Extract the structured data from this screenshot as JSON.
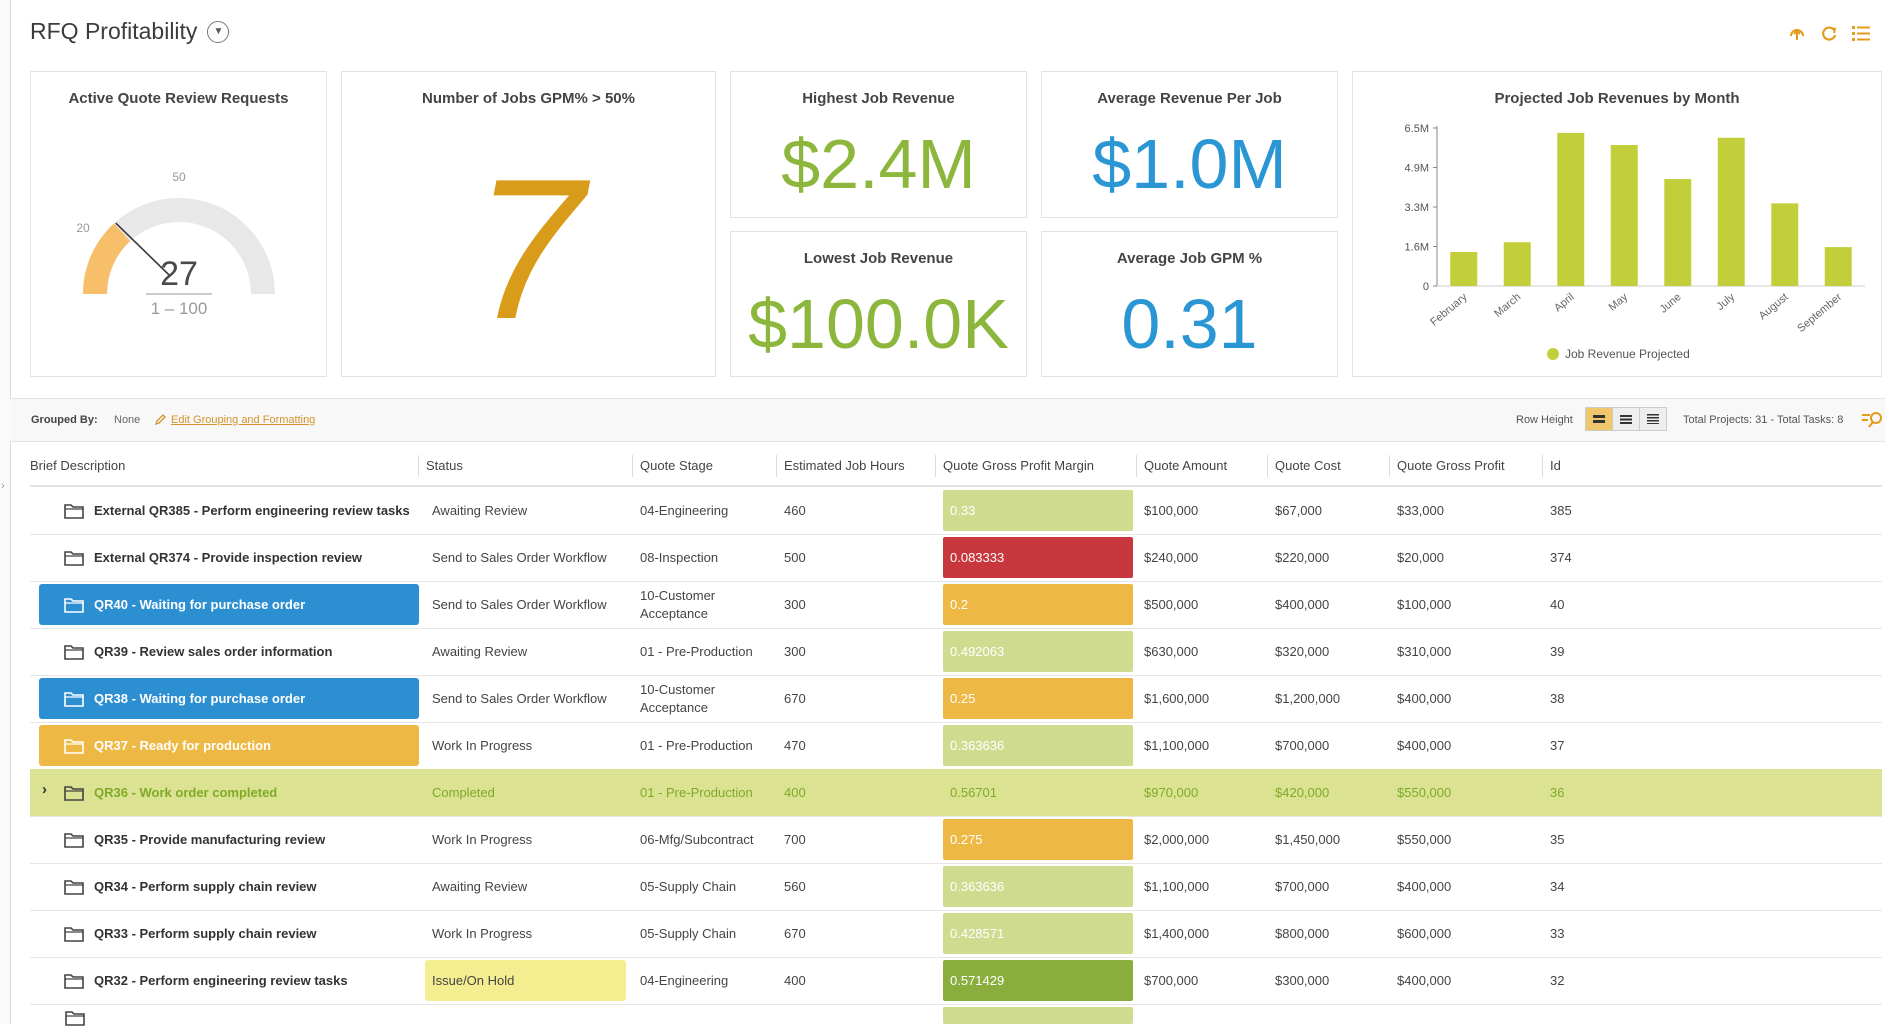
{
  "page": {
    "title": "RFQ Profitability"
  },
  "kpis": {
    "active_quotes": {
      "title": "Active Quote Review Requests",
      "value": "27",
      "range": "1 – 100",
      "tick_low": "20",
      "tick_mid": "50",
      "gauge": {
        "min": 1,
        "max": 100,
        "value": 27
      }
    },
    "jobs_gpm": {
      "title": "Number of Jobs GPM% > 50%",
      "value": "7"
    },
    "highest_revenue": {
      "title": "Highest Job Revenue",
      "value": "$2.4M"
    },
    "average_revenue": {
      "title": "Average Revenue Per Job",
      "value": "$1.0M"
    },
    "lowest_revenue": {
      "title": "Lowest Job Revenue",
      "value": "$100.0K"
    },
    "average_gpm": {
      "title": "Average Job GPM %",
      "value": "0.31"
    }
  },
  "colors": {
    "green": "#8db63c",
    "blue": "#2a97d4",
    "gold": "#d89c1a",
    "lime": "#c3cf3a",
    "orange_gauge": "#f7bf6a",
    "row_blue": "#2c8fd2",
    "row_amber": "#eeb845",
    "row_lime": "#dbe291",
    "margin_light": "#cfdb8f",
    "margin_red": "#c8373d",
    "margin_amber": "#eeb845",
    "margin_green": "#8aae3d",
    "status_yellow": "#f5ee91"
  },
  "chart_data": {
    "type": "bar",
    "title": "Projected Job Revenues by Month",
    "categories": [
      "February",
      "March",
      "April",
      "May",
      "June",
      "July",
      "August",
      "September"
    ],
    "series": [
      {
        "name": "Job Revenue Projected",
        "values": [
          1.4,
          1.8,
          6.3,
          5.8,
          4.4,
          6.1,
          3.4,
          1.6
        ]
      }
    ],
    "y_ticks": [
      "0",
      "1.6M",
      "3.3M",
      "4.9M",
      "6.5M"
    ],
    "ylim": [
      0,
      6.5
    ],
    "legend_position": "bottom"
  },
  "toolbar": {
    "grouped_by_label": "Grouped By:",
    "grouped_by_value": "None",
    "edit_grouping": "Edit Grouping and Formatting",
    "row_height_label": "Row Height",
    "totals": "Total Projects: 31 - Total Tasks: 8"
  },
  "grid": {
    "columns": [
      "Brief Description",
      "Status",
      "Quote Stage",
      "Estimated Job Hours",
      "Quote Gross Profit Margin",
      "Quote Amount",
      "Quote Cost",
      "Quote Gross Profit",
      "Id"
    ],
    "rows": [
      {
        "desc": "External QR385 - Perform engineering review tasks",
        "status": "Awaiting Review",
        "stage": "04-Engineering",
        "stage2": "",
        "hours": "460",
        "margin": "0.33",
        "amount": "$100,000",
        "cost": "$67,000",
        "profit": "$33,000",
        "id": "385",
        "desc_style": "",
        "margin_style": "light",
        "row_style": "",
        "status_style": "",
        "expand": false
      },
      {
        "desc": "External QR374 - Provide inspection review",
        "status": "Send to Sales Order Workflow",
        "stage": "08-Inspection",
        "stage2": "",
        "hours": "500",
        "margin": "0.083333",
        "amount": "$240,000",
        "cost": "$220,000",
        "profit": "$20,000",
        "id": "374",
        "desc_style": "",
        "margin_style": "red",
        "row_style": "",
        "status_style": "",
        "expand": false
      },
      {
        "desc": "QR40 - Waiting for purchase order",
        "status": "Send to Sales Order Workflow",
        "stage": "10-Customer",
        "stage2": "Acceptance",
        "hours": "300",
        "margin": "0.2",
        "amount": "$500,000",
        "cost": "$400,000",
        "profit": "$100,000",
        "id": "40",
        "desc_style": "blue",
        "margin_style": "amber",
        "row_style": "",
        "status_style": "",
        "expand": false
      },
      {
        "desc": "QR39 - Review sales order information",
        "status": "Awaiting Review",
        "stage": "01 - Pre-Production",
        "stage2": "",
        "hours": "300",
        "margin": "0.492063",
        "amount": "$630,000",
        "cost": "$320,000",
        "profit": "$310,000",
        "id": "39",
        "desc_style": "",
        "margin_style": "light",
        "row_style": "",
        "status_style": "",
        "expand": false
      },
      {
        "desc": "QR38 - Waiting for purchase order",
        "status": "Send to Sales Order Workflow",
        "stage": "10-Customer",
        "stage2": "Acceptance",
        "hours": "670",
        "margin": "0.25",
        "amount": "$1,600,000",
        "cost": "$1,200,000",
        "profit": "$400,000",
        "id": "38",
        "desc_style": "blue",
        "margin_style": "amber",
        "row_style": "",
        "status_style": "",
        "expand": false
      },
      {
        "desc": "QR37 - Ready for production",
        "status": "Work In Progress",
        "stage": "01 - Pre-Production",
        "stage2": "",
        "hours": "470",
        "margin": "0.363636",
        "amount": "$1,100,000",
        "cost": "$700,000",
        "profit": "$400,000",
        "id": "37",
        "desc_style": "amber",
        "margin_style": "light",
        "row_style": "",
        "status_style": "",
        "expand": true
      },
      {
        "desc": "QR36 - Work order completed",
        "status": "Completed",
        "stage": "01 - Pre-Production",
        "stage2": "",
        "hours": "400",
        "margin": "0.56701",
        "amount": "$970,000",
        "cost": "$420,000",
        "profit": "$550,000",
        "id": "36",
        "desc_style": "",
        "margin_style": "none",
        "row_style": "lime",
        "status_style": "",
        "expand": true
      },
      {
        "desc": "QR35 - Provide manufacturing review",
        "status": "Work In Progress",
        "stage": "06-Mfg/Subcontract",
        "stage2": "",
        "hours": "700",
        "margin": "0.275",
        "amount": "$2,000,000",
        "cost": "$1,450,000",
        "profit": "$550,000",
        "id": "35",
        "desc_style": "",
        "margin_style": "amber",
        "row_style": "",
        "status_style": "",
        "expand": false
      },
      {
        "desc": "QR34 - Perform supply chain review",
        "status": "Awaiting Review",
        "stage": "05-Supply Chain",
        "stage2": "",
        "hours": "560",
        "margin": "0.363636",
        "amount": "$1,100,000",
        "cost": "$700,000",
        "profit": "$400,000",
        "id": "34",
        "desc_style": "",
        "margin_style": "light",
        "row_style": "",
        "status_style": "",
        "expand": false
      },
      {
        "desc": "QR33 - Perform supply chain review",
        "status": "Work In Progress",
        "stage": "05-Supply Chain",
        "stage2": "",
        "hours": "670",
        "margin": "0.428571",
        "amount": "$1,400,000",
        "cost": "$800,000",
        "profit": "$600,000",
        "id": "33",
        "desc_style": "",
        "margin_style": "light",
        "row_style": "",
        "status_style": "",
        "expand": false
      },
      {
        "desc": "QR32 - Perform engineering review tasks",
        "status": "Issue/On Hold",
        "stage": "04-Engineering",
        "stage2": "",
        "hours": "400",
        "margin": "0.571429",
        "amount": "$700,000",
        "cost": "$300,000",
        "profit": "$400,000",
        "id": "32",
        "desc_style": "",
        "margin_style": "green",
        "row_style": "",
        "status_style": "yellow",
        "expand": false
      }
    ]
  }
}
